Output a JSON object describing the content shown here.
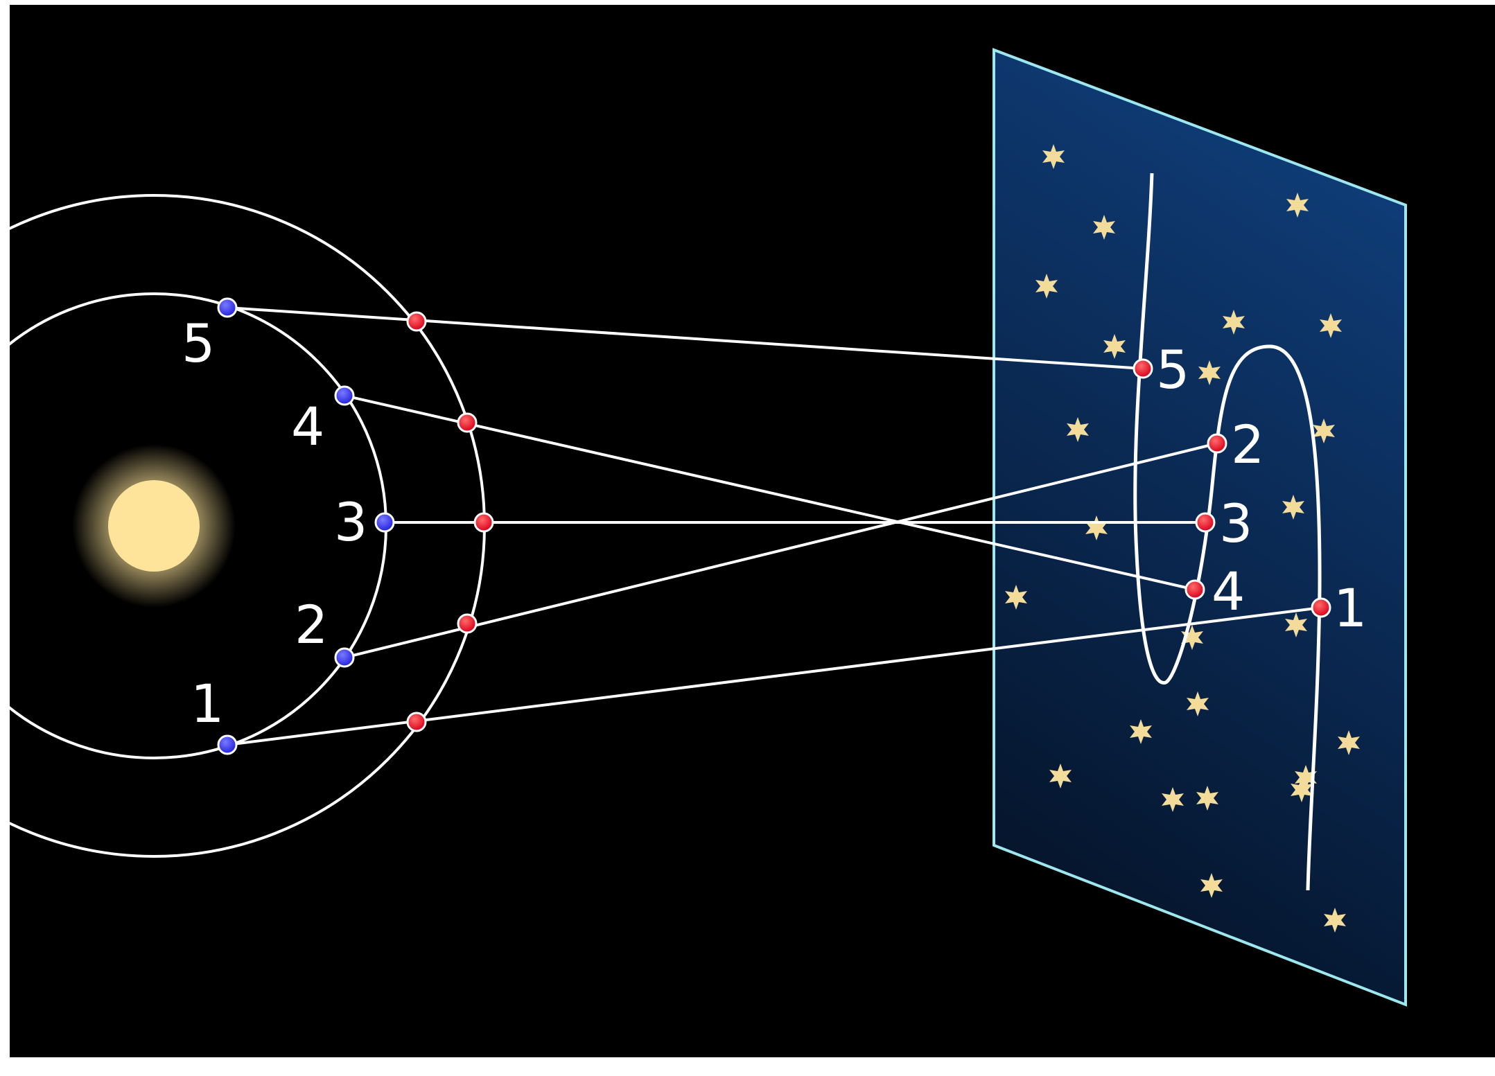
{
  "labels": {
    "inner": [
      "1",
      "2",
      "3",
      "4",
      "5"
    ],
    "sky": [
      "1",
      "2",
      "3",
      "4",
      "5"
    ]
  },
  "colors": {
    "background": "#000000",
    "sun": "#fde49a",
    "earth_dot": "#3a3af0",
    "planet_dot": "#e8101e",
    "orbit": "#ffffff",
    "sky_plane_border": "#9de8ef",
    "sky_plane_top": "#0f3c77",
    "sky_plane_bottom": "#05152c",
    "star": "#f3dc9a"
  }
}
